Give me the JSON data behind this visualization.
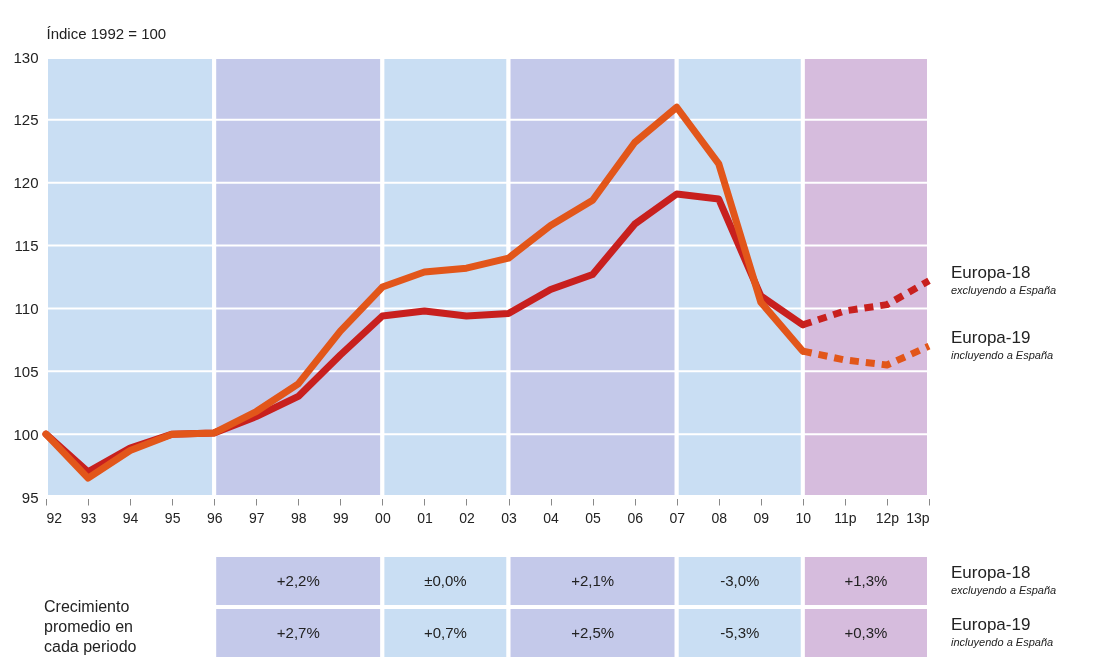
{
  "chart_data": {
    "type": "line",
    "ylabel": "Índice 1992 = 100",
    "categories": [
      "92",
      "93",
      "94",
      "95",
      "96",
      "97",
      "98",
      "99",
      "00",
      "01",
      "02",
      "03",
      "04",
      "05",
      "06",
      "07",
      "08",
      "09",
      "10",
      "11p",
      "12p",
      "13p"
    ],
    "series": [
      {
        "name": "Europa-18",
        "color": "#c8201e",
        "line_style": "solid",
        "values": [
          100,
          97,
          98.9,
          100,
          100.1,
          101.4,
          103,
          106.3,
          109.4,
          109.8,
          109.4,
          109.6,
          111.5,
          112.7,
          116.7,
          119.1,
          118.7,
          111,
          108.7,
          null,
          null,
          null
        ]
      },
      {
        "name": "Europa-19",
        "color": "#e2561a",
        "line_style": "solid",
        "values": [
          100,
          96.5,
          98.7,
          100,
          100.1,
          101.8,
          104,
          108.2,
          111.7,
          112.9,
          113.2,
          114,
          116.6,
          118.6,
          123.2,
          126,
          121.5,
          110.5,
          106.6,
          null,
          null,
          null
        ]
      },
      {
        "color": "#c8201e",
        "line_style": "dashed",
        "values": [
          null,
          null,
          null,
          null,
          null,
          null,
          null,
          null,
          null,
          null,
          null,
          null,
          null,
          null,
          null,
          null,
          null,
          null,
          108.7,
          109.8,
          110.3,
          112.2
        ]
      },
      {
        "color": "#e2561a",
        "line_style": "dashed",
        "values": [
          null,
          null,
          null,
          null,
          null,
          null,
          null,
          null,
          null,
          null,
          null,
          null,
          null,
          null,
          null,
          null,
          null,
          null,
          106.6,
          105.9,
          105.5,
          107
        ]
      }
    ],
    "ylim": [
      95,
      130
    ],
    "yticks": [
      95,
      100,
      105,
      110,
      115,
      120,
      125,
      130
    ],
    "grid": "y",
    "bands": [
      {
        "axis": "x",
        "from": "92",
        "to": "96",
        "color": "#c9def3"
      },
      {
        "axis": "x",
        "from": "96",
        "to": "00",
        "color": "#c4c9ea"
      },
      {
        "axis": "x",
        "from": "00",
        "to": "03",
        "color": "#c9def3"
      },
      {
        "axis": "x",
        "from": "03",
        "to": "07",
        "color": "#c4c9ea"
      },
      {
        "axis": "x",
        "from": "07",
        "to": "10",
        "color": "#c9def3"
      },
      {
        "axis": "x",
        "from": "10",
        "to": "13p",
        "color": "#d6bcdd"
      }
    ],
    "annotations": [
      {
        "text": "excluyendo a España",
        "x": "13p",
        "y": 112.2
      },
      {
        "text": "incluyendo a España",
        "x": "13p",
        "y": 107
      },
      "Crecimiento promedio en cada periodo",
      "+2,2%",
      "±0,0%",
      "+2,1%",
      "-3,0%",
      "+1,3%",
      "+2,7%",
      "+0,7%",
      "+2,5%",
      "-5,3%",
      "+0,3%"
    ]
  }
}
